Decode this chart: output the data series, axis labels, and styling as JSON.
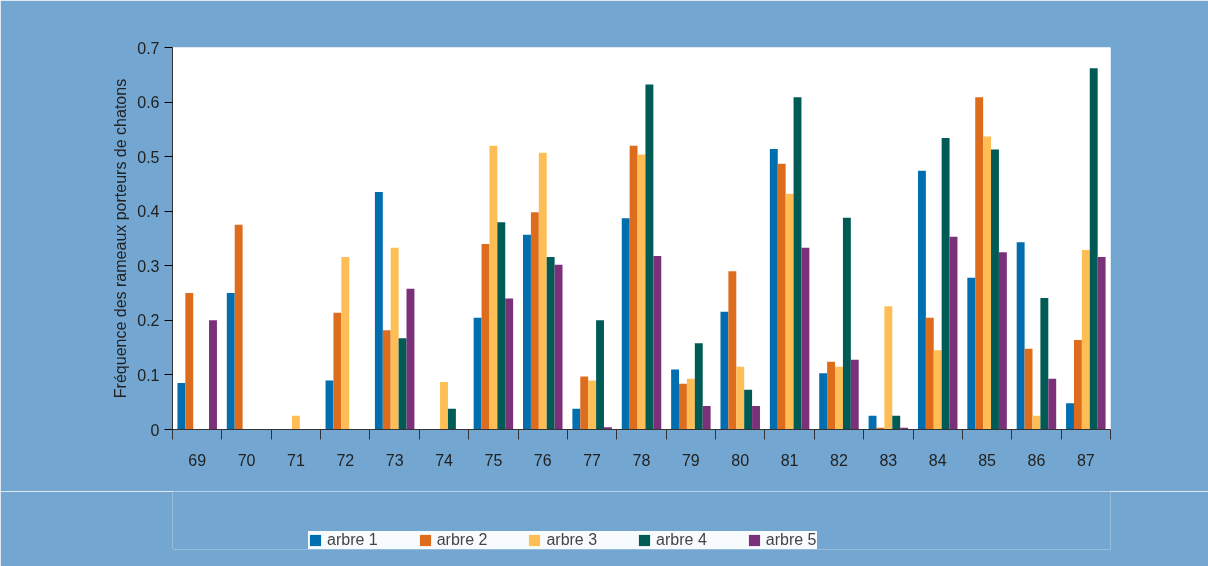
{
  "chart_data": {
    "type": "bar",
    "ylabel": "Fréquence des rameaux porteurs de chatons",
    "categories": [
      "69",
      "70",
      "71",
      "72",
      "73",
      "74",
      "75",
      "76",
      "77",
      "78",
      "79",
      "80",
      "81",
      "82",
      "83",
      "84",
      "85",
      "86",
      "87"
    ],
    "series": [
      {
        "name": "arbre 1",
        "color": "#006eaf",
        "values": [
          0.085,
          0.25,
          0,
          0.09,
          0.435,
          0,
          0.205,
          0.357,
          0.038,
          0.387,
          0.11,
          0.216,
          0.514,
          0.103,
          0.025,
          0.474,
          0.278,
          0.343,
          0.048
        ]
      },
      {
        "name": "arbre 2",
        "color": "#dd6d1d",
        "values": [
          0.25,
          0.375,
          0,
          0.214,
          0.182,
          0,
          0.34,
          0.398,
          0.097,
          0.52,
          0.084,
          0.29,
          0.487,
          0.124,
          0.003,
          0.205,
          0.609,
          0.148,
          0.164
        ]
      },
      {
        "name": "arbre 3",
        "color": "#ffbe55",
        "values": [
          0,
          0,
          0.025,
          0.316,
          0.333,
          0.087,
          0.52,
          0.507,
          0.09,
          0.504,
          0.093,
          0.115,
          0.432,
          0.115,
          0.226,
          0.145,
          0.537,
          0.025,
          0.329
        ]
      },
      {
        "name": "arbre 4",
        "color": "#005a55",
        "values": [
          0,
          0,
          0,
          0,
          0.167,
          0.038,
          0.38,
          0.316,
          0.2,
          0.632,
          0.158,
          0.073,
          0.609,
          0.388,
          0.025,
          0.534,
          0.513,
          0.241,
          0.662
        ]
      },
      {
        "name": "arbre 5",
        "color": "#7b3179",
        "values": [
          0.2,
          0,
          0,
          0,
          0.258,
          0,
          0.24,
          0.302,
          0.004,
          0.318,
          0.043,
          0.043,
          0.333,
          0.128,
          0.003,
          0.353,
          0.325,
          0.093,
          0.316
        ]
      }
    ],
    "ylim": [
      0,
      0.7
    ],
    "yticks": [
      0,
      0.1,
      0.2,
      0.3,
      0.4,
      0.5,
      0.6,
      0.7
    ],
    "grid": false,
    "legend": "bottom"
  }
}
